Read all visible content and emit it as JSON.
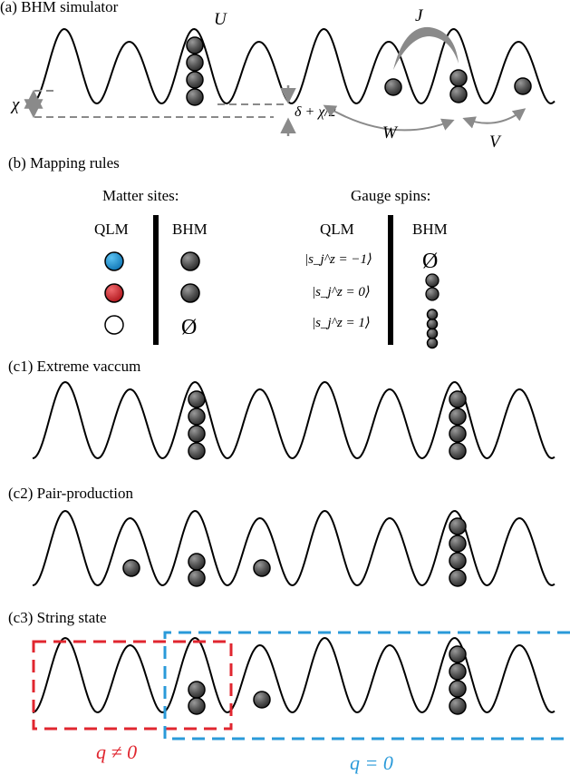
{
  "panel_a": {
    "label": "(a) BHM simulator",
    "sym_U": "U",
    "sym_J": "J",
    "sym_chi": "χ",
    "sym_delta": "δ + χ/2",
    "sym_W": "W",
    "sym_V": "V"
  },
  "panel_b": {
    "label": "(b) Mapping rules",
    "matter_heading": "Matter sites:",
    "gauge_heading": "Gauge spins:",
    "col_qlm": "QLM",
    "col_bhm": "BHM",
    "empty_symbol": "Ø",
    "ket_minus1": "|s_j^z = −1⟩",
    "ket_0": "|s_j^z = 0⟩",
    "ket_1": "|s_j^z = 1⟩",
    "colors": {
      "blue": "#1c8fd8",
      "red": "#d8262e",
      "white": "#ffffff"
    }
  },
  "panel_c1": {
    "label": "(c1) Extreme vaccum"
  },
  "panel_c2": {
    "label": "(c2) Pair-production"
  },
  "panel_c3": {
    "label": "(c3) String state",
    "red_label": "q ≠ 0",
    "blue_label": "q = 0",
    "colors": {
      "red": "#e0262f",
      "blue": "#2a9ad9"
    }
  }
}
